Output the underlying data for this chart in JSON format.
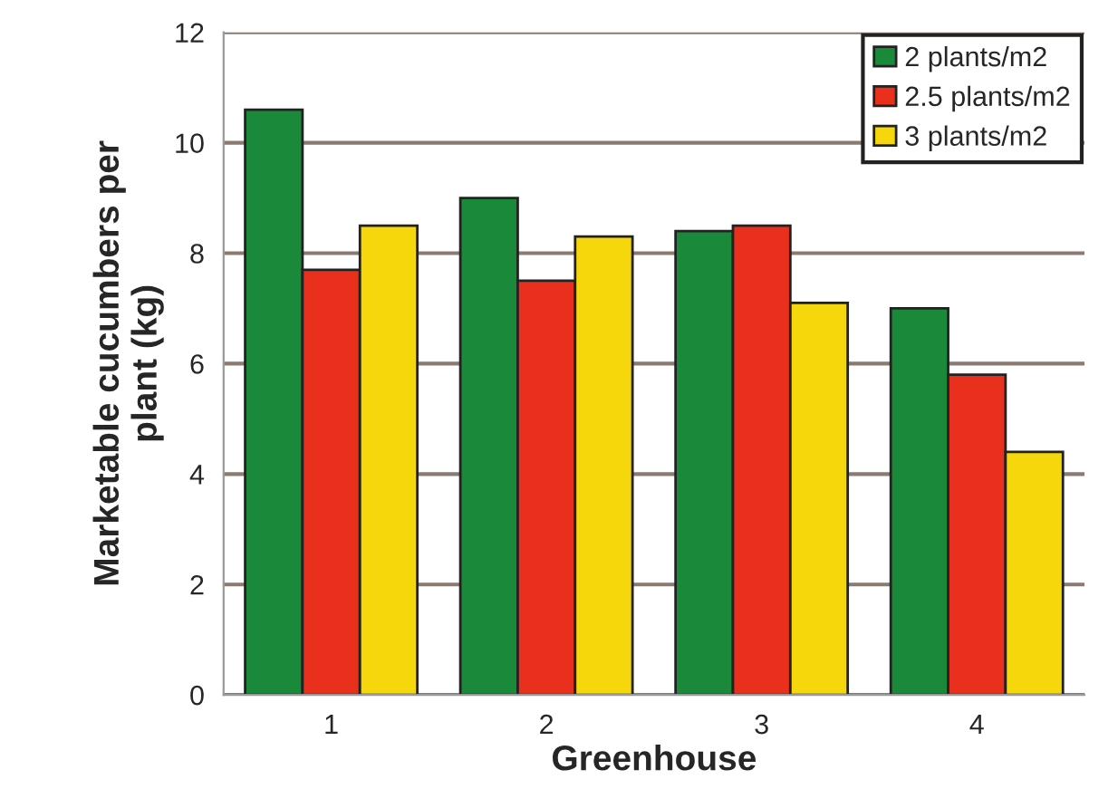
{
  "chart_data": {
    "type": "bar",
    "xlabel": "Greenhouse",
    "ylabel": "Marketable cucumbers per\nplant (kg)",
    "categories": [
      "1",
      "2",
      "3",
      "4"
    ],
    "series": [
      {
        "name": "2 plants/m2",
        "color": "#1a8a3a",
        "values": [
          10.6,
          9.0,
          8.4,
          7.0
        ]
      },
      {
        "name": "2.5 plants/m2",
        "color": "#e8301c",
        "values": [
          7.7,
          7.5,
          8.5,
          5.8
        ]
      },
      {
        "name": "3 plants/m2",
        "color": "#f5d70c",
        "values": [
          8.5,
          8.3,
          7.1,
          4.4
        ]
      }
    ],
    "ylim": [
      0,
      12
    ],
    "yticks": [
      0,
      2,
      4,
      6,
      8,
      10,
      12
    ],
    "grid": "y",
    "legend": "top right"
  }
}
